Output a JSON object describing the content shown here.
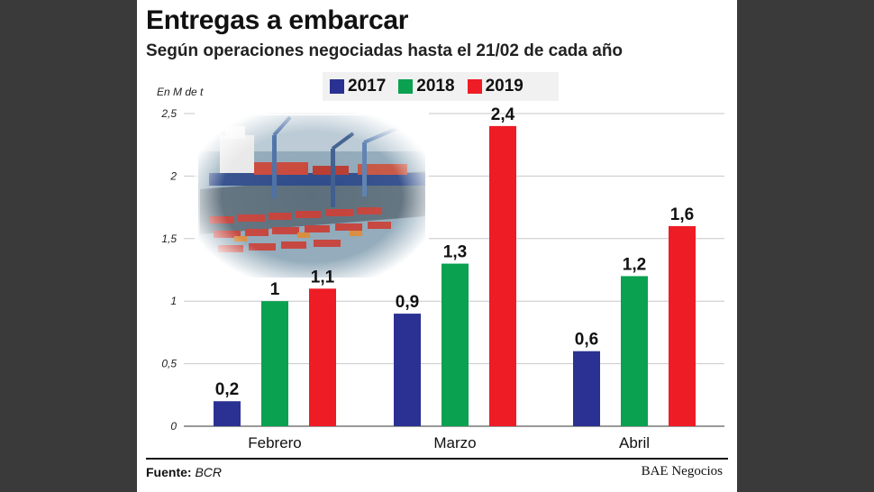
{
  "chart_data": {
    "type": "bar",
    "title": "Entregas a embarcar",
    "subtitle": "Según operaciones negociadas hasta el 21/02 de cada año",
    "ylabel": "En M de t",
    "categories": [
      "Febrero",
      "Marzo",
      "Abril"
    ],
    "series": [
      {
        "name": "2017",
        "color": "#2b3192",
        "values": [
          0.2,
          0.9,
          0.6
        ],
        "labels": [
          "0,2",
          "0,9",
          "0,6"
        ]
      },
      {
        "name": "2018",
        "color": "#0aa150",
        "values": [
          1.0,
          1.3,
          1.2
        ],
        "labels": [
          "1",
          "1,3",
          "1,2"
        ]
      },
      {
        "name": "2019",
        "color": "#ee1c25",
        "values": [
          1.1,
          2.4,
          1.6
        ],
        "labels": [
          "1,1",
          "2,4",
          "1,6"
        ]
      }
    ],
    "ylim": [
      0,
      2.5
    ],
    "yticks": [
      {
        "value": 0,
        "label": "0"
      },
      {
        "value": 0.5,
        "label": "0,5"
      },
      {
        "value": 1,
        "label": "1"
      },
      {
        "value": 1.5,
        "label": "1,5"
      },
      {
        "value": 2,
        "label": "2"
      },
      {
        "value": 2.5,
        "label": "2,5"
      }
    ],
    "grid": true,
    "legend": "top"
  },
  "footer": {
    "source_label": "Fuente:",
    "source_value": "BCR",
    "brand": "BAE Negocios"
  },
  "photo": {
    "icon": "port-cranes-containers-photo"
  }
}
